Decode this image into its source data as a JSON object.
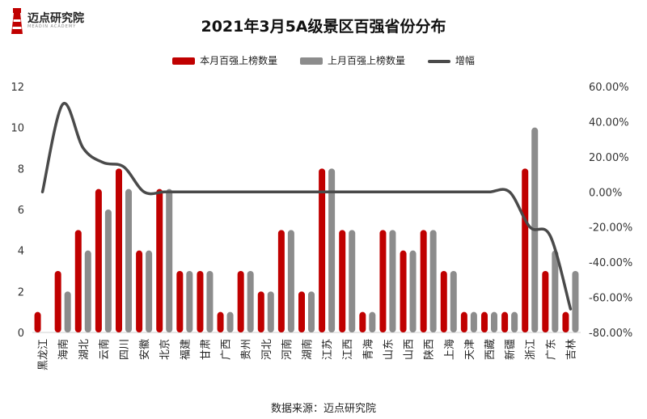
{
  "logo": {
    "name": "迈点研究院",
    "sub": "MEADIN ACADEMY"
  },
  "source": "数据来源：迈点研究院",
  "colors": {
    "current": "#c00000",
    "previous": "#8c8c8c",
    "change": "#4a4a4a"
  },
  "chart_data": {
    "type": "bar",
    "title": "2021年3月5A级景区百强省份分布",
    "categories": [
      "黑龙江",
      "海南",
      "湖北",
      "云南",
      "四川",
      "安徽",
      "北京",
      "福建",
      "甘肃",
      "广西",
      "贵州",
      "河北",
      "河南",
      "湖南",
      "江苏",
      "江西",
      "青海",
      "山东",
      "山西",
      "陕西",
      "上海",
      "天津",
      "西藏",
      "新疆",
      "浙江",
      "广东",
      "吉林"
    ],
    "series": [
      {
        "name": "本月百强上榜数量",
        "type": "bar",
        "axis": "left",
        "values": [
          1,
          3,
          5,
          7,
          8,
          4,
          7,
          3,
          3,
          1,
          3,
          2,
          5,
          2,
          8,
          5,
          1,
          5,
          4,
          5,
          3,
          1,
          1,
          1,
          8,
          3,
          1
        ]
      },
      {
        "name": "上月百强上榜数量",
        "type": "bar",
        "axis": "left",
        "values": [
          0,
          2,
          4,
          6,
          7,
          4,
          7,
          3,
          3,
          1,
          3,
          2,
          5,
          2,
          8,
          5,
          1,
          5,
          4,
          5,
          3,
          1,
          1,
          1,
          10,
          4,
          3
        ]
      },
      {
        "name": "增幅",
        "type": "line",
        "axis": "right",
        "values": [
          0,
          50,
          25,
          16.67,
          14.29,
          0,
          0,
          0,
          0,
          0,
          0,
          0,
          0,
          0,
          0,
          0,
          0,
          0,
          0,
          0,
          0,
          0,
          0,
          0,
          -20,
          -25,
          -66.67
        ]
      }
    ],
    "y_left": {
      "min": 0,
      "max": 12,
      "ticks": [
        0,
        2,
        4,
        6,
        8,
        10,
        12
      ]
    },
    "y_right": {
      "min": -80,
      "max": 60,
      "ticks": [
        "60.00%",
        "40.00%",
        "20.00%",
        "0.00%",
        "-20.00%",
        "-40.00%",
        "-60.00%",
        "-80.00%"
      ]
    },
    "legend_position": "top",
    "grid": false
  }
}
